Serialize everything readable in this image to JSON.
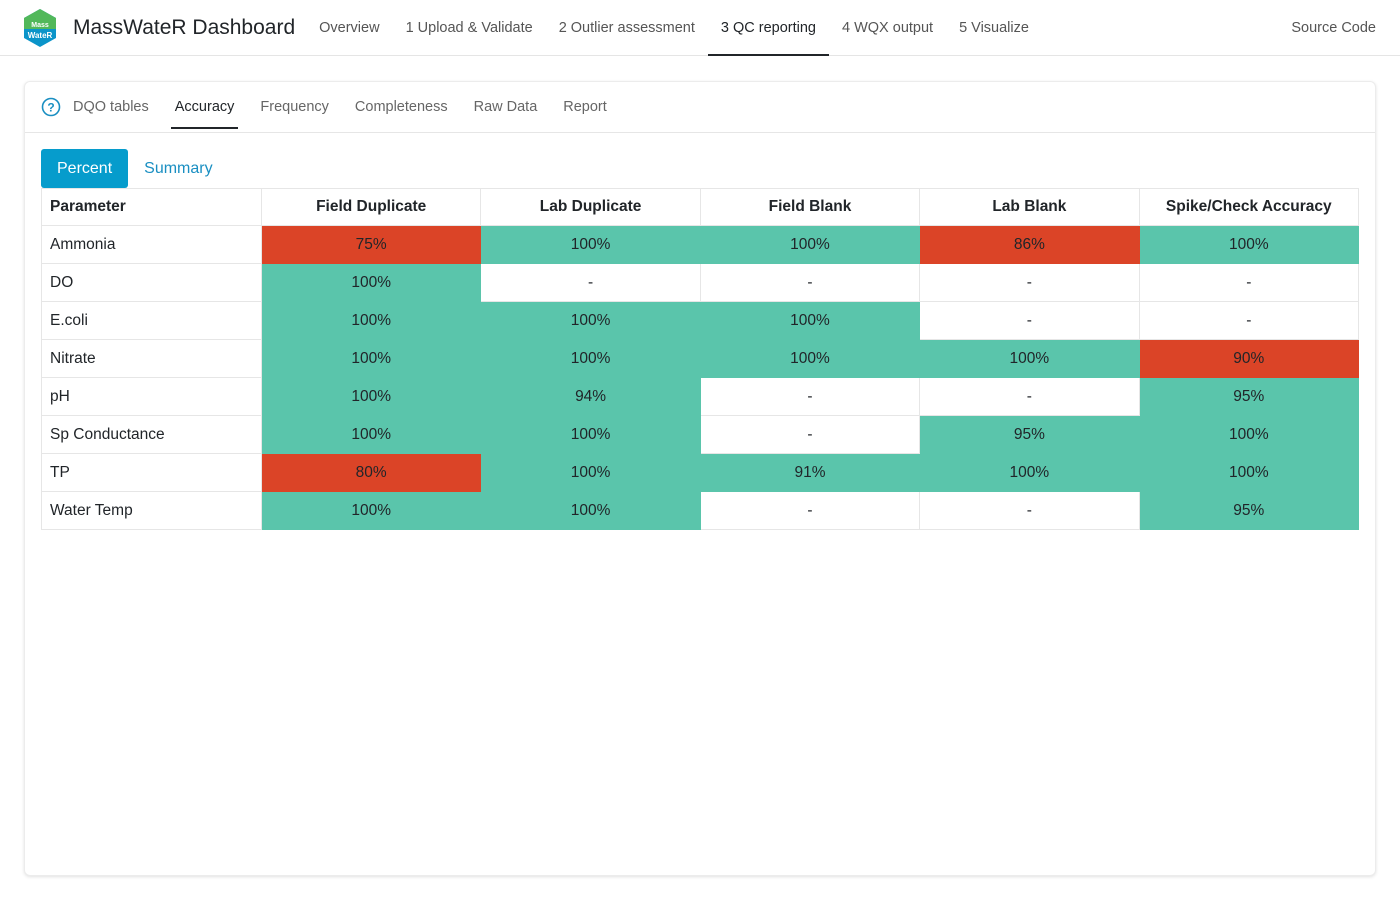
{
  "app": {
    "title": "MassWateR Dashboard",
    "logo_text_top": "Mass",
    "logo_text_bottom": "WateR",
    "nav": [
      "Overview",
      "1 Upload & Validate",
      "2 Outlier assessment",
      "3 QC reporting",
      "4 WQX output",
      "5 Visualize"
    ],
    "active_nav_index": 3,
    "source_code": "Source Code"
  },
  "card": {
    "tabs": [
      "DQO tables",
      "Accuracy",
      "Frequency",
      "Completeness",
      "Raw Data",
      "Report"
    ],
    "active_tab_index": 1,
    "pills": [
      "Percent",
      "Summary"
    ],
    "active_pill_index": 0
  },
  "table": {
    "headers": [
      "Parameter",
      "Field Duplicate",
      "Lab Duplicate",
      "Field Blank",
      "Lab Blank",
      "Spike/Check Accuracy"
    ],
    "rows": [
      {
        "param": "Ammonia",
        "values": [
          "75%",
          "100%",
          "100%",
          "86%",
          "100%"
        ],
        "status": [
          "bad",
          "ok",
          "ok",
          "bad",
          "ok"
        ]
      },
      {
        "param": "DO",
        "values": [
          "100%",
          "-",
          "-",
          "-",
          "-"
        ],
        "status": [
          "ok",
          "na",
          "na",
          "na",
          "na"
        ]
      },
      {
        "param": "E.coli",
        "values": [
          "100%",
          "100%",
          "100%",
          "-",
          "-"
        ],
        "status": [
          "ok",
          "ok",
          "ok",
          "na",
          "na"
        ]
      },
      {
        "param": "Nitrate",
        "values": [
          "100%",
          "100%",
          "100%",
          "100%",
          "90%"
        ],
        "status": [
          "ok",
          "ok",
          "ok",
          "ok",
          "bad"
        ]
      },
      {
        "param": "pH",
        "values": [
          "100%",
          "94%",
          "-",
          "-",
          "95%"
        ],
        "status": [
          "ok",
          "ok",
          "na",
          "na",
          "ok"
        ]
      },
      {
        "param": "Sp Conductance",
        "values": [
          "100%",
          "100%",
          "-",
          "95%",
          "100%"
        ],
        "status": [
          "ok",
          "ok",
          "na",
          "ok",
          "ok"
        ]
      },
      {
        "param": "TP",
        "values": [
          "80%",
          "100%",
          "91%",
          "100%",
          "100%"
        ],
        "status": [
          "bad",
          "ok",
          "ok",
          "ok",
          "ok"
        ]
      },
      {
        "param": "Water Temp",
        "values": [
          "100%",
          "100%",
          "-",
          "-",
          "95%"
        ],
        "status": [
          "ok",
          "ok",
          "na",
          "na",
          "ok"
        ]
      }
    ]
  },
  "colors": {
    "pass": "#5ac5ab",
    "fail": "#db4427",
    "accent": "#069ccc"
  }
}
